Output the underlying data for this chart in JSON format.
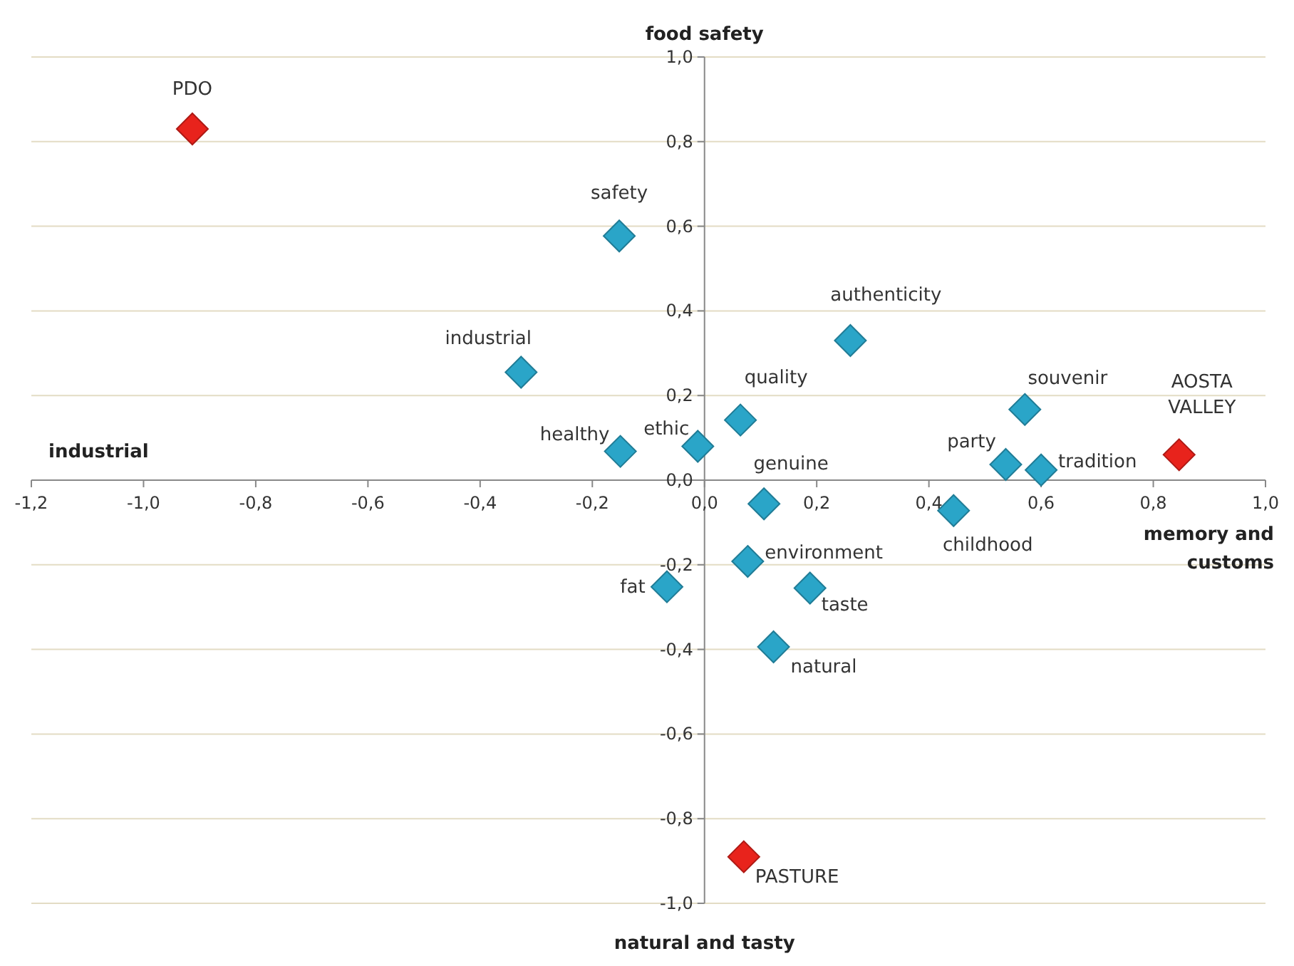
{
  "chart_data": {
    "type": "scatter",
    "marker": "diamond",
    "grid": "y",
    "xlim": [
      -1.2,
      1.0
    ],
    "ylim": [
      -1.0,
      1.0
    ],
    "xticks": [
      {
        "value": -1.2,
        "label": "-1,2"
      },
      {
        "value": -1.0,
        "label": "-1,0"
      },
      {
        "value": -0.8,
        "label": "-0,8"
      },
      {
        "value": -0.6,
        "label": "-0,6"
      },
      {
        "value": -0.4,
        "label": "-0,4"
      },
      {
        "value": -0.2,
        "label": "-0,2"
      },
      {
        "value": 0,
        "label": "0,0"
      },
      {
        "value": 0.2,
        "label": "0,2"
      },
      {
        "value": 0.4,
        "label": "0,4"
      },
      {
        "value": 0.6,
        "label": "0,6"
      },
      {
        "value": 0.8,
        "label": "0,8"
      },
      {
        "value": 1.0,
        "label": "1,0"
      }
    ],
    "yticks": [
      {
        "value": -1.0,
        "label": "-1,0"
      },
      {
        "value": -0.8,
        "label": "-0,8"
      },
      {
        "value": -0.6,
        "label": "-0,6"
      },
      {
        "value": -0.4,
        "label": "-0,4"
      },
      {
        "value": -0.2,
        "label": "-0,2"
      },
      {
        "value": 0,
        "label": "0,0"
      },
      {
        "value": 0.2,
        "label": "0,2"
      },
      {
        "value": 0.4,
        "label": "0,4"
      },
      {
        "value": 0.6,
        "label": "0,6"
      },
      {
        "value": 0.8,
        "label": "0,8"
      },
      {
        "value": 1.0,
        "label": "1,0"
      }
    ],
    "series": [
      {
        "color": "#2aa5c8",
        "x": [
          -0.152,
          -0.327,
          -0.15,
          -0.012,
          0.064,
          0.26,
          0.106,
          0.077,
          -0.067,
          0.188,
          0.123,
          0.571,
          0.537,
          0.6,
          0.444
        ],
        "values": [
          0.577,
          0.255,
          0.068,
          0.08,
          0.142,
          0.33,
          -0.056,
          -0.192,
          -0.252,
          -0.255,
          -0.394,
          0.167,
          0.037,
          0.024,
          -0.072
        ]
      },
      {
        "color": "#e8231c",
        "x": [
          -0.913,
          0.846,
          0.07
        ],
        "values": [
          0.83,
          0.06,
          -0.89
        ]
      }
    ],
    "annotations": [
      "food safety",
      "natural and tasty",
      "industrial",
      "memory and customs",
      {
        "text": "safety",
        "x": -0.152,
        "y": 0.577
      },
      {
        "text": "industrial",
        "x": -0.327,
        "y": 0.255
      },
      {
        "text": "healthy",
        "x": -0.15,
        "y": 0.068
      },
      {
        "text": "ethic",
        "x": -0.012,
        "y": 0.08
      },
      {
        "text": "quality",
        "x": 0.064,
        "y": 0.142
      },
      {
        "text": "authenticity",
        "x": 0.26,
        "y": 0.33
      },
      {
        "text": "genuine",
        "x": 0.106,
        "y": -0.056
      },
      {
        "text": "environment",
        "x": 0.077,
        "y": -0.192
      },
      {
        "text": "fat",
        "x": -0.067,
        "y": -0.252
      },
      {
        "text": "taste",
        "x": 0.188,
        "y": -0.255
      },
      {
        "text": "natural",
        "x": 0.123,
        "y": -0.394
      },
      {
        "text": "souvenir",
        "x": 0.571,
        "y": 0.167
      },
      {
        "text": "party",
        "x": 0.537,
        "y": 0.037
      },
      {
        "text": "tradition",
        "x": 0.6,
        "y": 0.024
      },
      {
        "text": "childhood",
        "x": 0.444,
        "y": -0.072
      },
      {
        "text": "PDO",
        "x": -0.913,
        "y": 0.83
      },
      {
        "text": "AOSTA VALLEY",
        "x": 0.846,
        "y": 0.06
      },
      {
        "text": "PASTURE",
        "x": 0.07,
        "y": -0.89
      }
    ]
  }
}
